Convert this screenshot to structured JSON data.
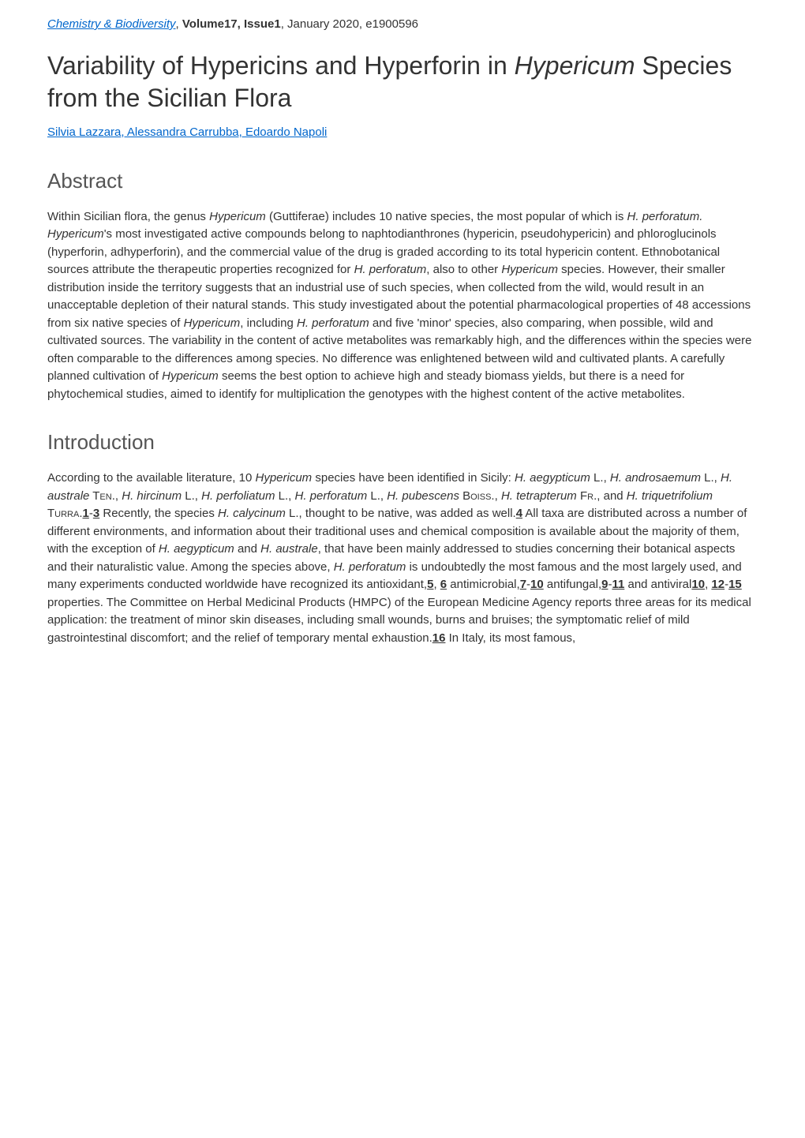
{
  "header": {
    "journal": "Chemistry & Biodiversity",
    "volume_issue": "Volume17, Issue1",
    "date_pages": " January 2020, e1900596"
  },
  "title_part1": "Variability of Hypericins and Hyperforin in ",
  "title_italic": "Hypericum",
  "title_part2": " Species from the Sicilian Flora",
  "authors": "Silvia Lazzara, Alessandra Carrubba, Edoardo Napoli",
  "abstract_heading": "Abstract",
  "abstract_p1a": "Within Sicilian flora, the genus ",
  "abstract_i1": "Hypericum",
  "abstract_p1b": " (Guttiferae) includes 10 native species, the most popular of which is ",
  "abstract_i2": "H. perforatum. Hypericum",
  "abstract_p1c": "'s most investigated active compounds belong to naphtodianthrones (hypericin, pseudohypericin) and phloroglucinols (hyperforin, adhyperforin), and the commercial value of the drug is graded according to its total hypericin content. Ethnobotanical sources attribute the therapeutic properties recognized for ",
  "abstract_i3": "H. perforatum",
  "abstract_p1d": ", also to other ",
  "abstract_i4": "Hypericum",
  "abstract_p1e": " species. However, their smaller distribution inside the territory suggests that an industrial use of such species, when collected from the wild, would result in an unacceptable depletion of their natural stands. This study investigated about the potential pharmacological properties of 48 accessions from six native species of ",
  "abstract_i5": "Hypericum",
  "abstract_p1f": ", including ",
  "abstract_i6": "H. perforatum",
  "abstract_p1g": " and five 'minor' species, also comparing, when possible, wild and cultivated sources. The variability in the content of active metabolites was remarkably high, and the differences within the species were often comparable to the differences among species. No difference was enlightened between wild and cultivated plants. A carefully planned cultivation of ",
  "abstract_i7": "Hypericum",
  "abstract_p1h": " seems the best option to achieve high and steady biomass yields, but there is a need for phytochemical studies, aimed to identify for multiplication the genotypes with the highest content of the active metabolites.",
  "intro_heading": "Introduction",
  "intro_p1a": "According to the available literature, 10 ",
  "intro_i1": "Hypericum",
  "intro_p1b": " species have been identified in Sicily: ",
  "intro_i2": "H. aegypticum",
  "intro_p1c": " L., ",
  "intro_i3": "H. androsaemum",
  "intro_p1d": " L., ",
  "intro_i4": "H. australe",
  "intro_sc1": " Ten.",
  "intro_p1e": ", ",
  "intro_i5": "H. hircinum",
  "intro_p1f": " L., ",
  "intro_i6": "H. perfoliatum",
  "intro_p1g": " L., ",
  "intro_i7": "H. perforatum",
  "intro_p1h": " L., ",
  "intro_i8": "H. pubescens",
  "intro_sc2": " Boiss.",
  "intro_p1i": ", ",
  "intro_i9": "H. tetrapterum",
  "intro_sc3": " Fr.",
  "intro_p1j": ", and ",
  "intro_i10": "H. triquetrifolium",
  "intro_sc4": " Turra.",
  "ref1": "1",
  "dash1": "-",
  "ref3": "3",
  "intro_p1k": " Recently, the species ",
  "intro_i11": "H. calycinum",
  "intro_p1l": " L., thought to be native, was added as well.",
  "ref4": "4",
  "intro_p1m": " All taxa are distributed across a number of different environments, and information about their traditional uses and chemical composition is available about the majority of them, with the exception of ",
  "intro_i12": "H. aegypticum",
  "intro_p1n": " and ",
  "intro_i13": "H. australe",
  "intro_p1o": ", that have been mainly addressed to studies concerning their botanical aspects and their naturalistic value. Among the species above, ",
  "intro_i14": "H. perforatum",
  "intro_p1p": " is undoubtedly the most famous and the most largely used, and many experiments conducted worldwide have recognized its antioxidant,",
  "ref5": "5",
  "comma1": ", ",
  "ref6": "6",
  "intro_p1q": " antimicrobial,",
  "ref7": "7",
  "dash2": "-",
  "ref10a": "10",
  "intro_p1r": " antifungal,",
  "ref9": "9",
  "dash3": "-",
  "ref11": "11",
  "intro_p1s": " and antiviral",
  "ref10b": "10",
  "comma2": ", ",
  "ref12": "12",
  "dash4": "-",
  "ref15": "15",
  "intro_p1t": " properties. The Committee on Herbal Medicinal Products (HMPC) of the European Medicine Agency reports three areas for its medical application: the treatment of minor skin diseases, including small wounds, burns and bruises; the symptomatic relief of mild gastrointestinal discomfort; and the relief of temporary mental exhaustion.",
  "ref16": "16",
  "intro_p1u": " In Italy, its most famous,"
}
